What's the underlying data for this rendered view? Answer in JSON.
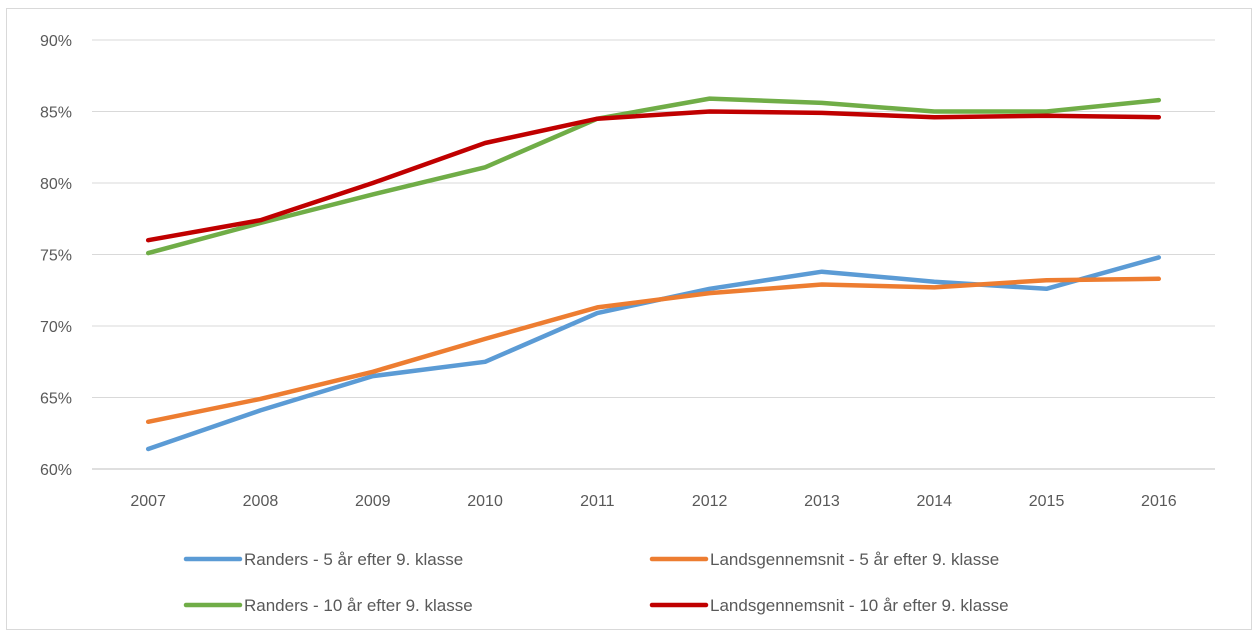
{
  "chart_data": {
    "type": "line",
    "title": "",
    "xlabel": "",
    "ylabel": "",
    "categories": [
      "2007",
      "2008",
      "2009",
      "2010",
      "2011",
      "2012",
      "2013",
      "2014",
      "2015",
      "2016"
    ],
    "y_ticks": [
      "60%",
      "65%",
      "70%",
      "75%",
      "80%",
      "85%",
      "90%"
    ],
    "ylim": [
      60,
      90
    ],
    "y_unit": "%",
    "grid": "horizontal",
    "legend_position": "bottom",
    "series": [
      {
        "name": "Randers - 5 år efter 9. klasse",
        "color": "#5b9bd5",
        "values": [
          61.4,
          64.1,
          66.5,
          67.5,
          70.9,
          72.6,
          73.8,
          73.1,
          72.6,
          74.8
        ]
      },
      {
        "name": "Landsgennemsnit - 5 år efter 9. klasse",
        "color": "#ed7d31",
        "values": [
          63.3,
          64.9,
          66.8,
          69.1,
          71.3,
          72.3,
          72.9,
          72.7,
          73.2,
          73.3
        ]
      },
      {
        "name": "Randers - 10 år efter 9. klasse",
        "color": "#70ad47",
        "values": [
          75.1,
          77.2,
          79.2,
          81.1,
          84.5,
          85.9,
          85.6,
          85.0,
          85.0,
          85.8
        ]
      },
      {
        "name": "Landsgennemsnit - 10 år efter 9. klasse",
        "color": "#c00000",
        "values": [
          76.0,
          77.4,
          80.0,
          82.8,
          84.5,
          85.0,
          84.9,
          84.6,
          84.7,
          84.6
        ]
      }
    ]
  }
}
